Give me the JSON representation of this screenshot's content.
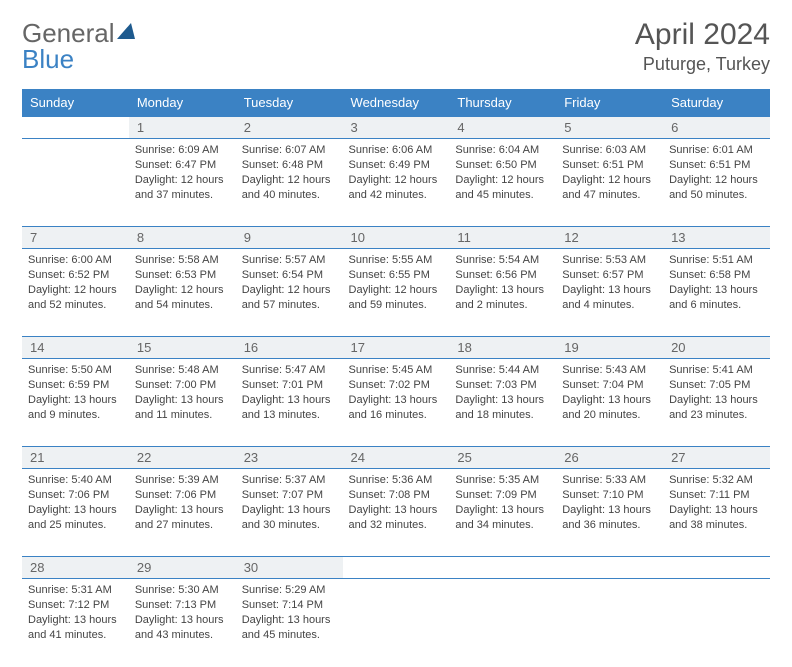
{
  "brand": {
    "word1": "General",
    "word2": "Blue"
  },
  "title": "April 2024",
  "location": "Puturge, Turkey",
  "dayHeaders": [
    "Sunday",
    "Monday",
    "Tuesday",
    "Wednesday",
    "Thursday",
    "Friday",
    "Saturday"
  ],
  "colors": {
    "headerBg": "#3b82c4",
    "dayNumBg": "#eef1f3",
    "border": "#3b82c4",
    "text": "#444444",
    "titleText": "#555555"
  },
  "typography": {
    "monthTitleSize": 30,
    "locationSize": 18,
    "dayHeaderSize": 13,
    "cellTextSize": 11
  },
  "weeks": [
    {
      "nums": [
        "",
        "1",
        "2",
        "3",
        "4",
        "5",
        "6"
      ],
      "cells": [
        null,
        {
          "sr": "Sunrise: 6:09 AM",
          "ss": "Sunset: 6:47 PM",
          "d1": "Daylight: 12 hours",
          "d2": "and 37 minutes."
        },
        {
          "sr": "Sunrise: 6:07 AM",
          "ss": "Sunset: 6:48 PM",
          "d1": "Daylight: 12 hours",
          "d2": "and 40 minutes."
        },
        {
          "sr": "Sunrise: 6:06 AM",
          "ss": "Sunset: 6:49 PM",
          "d1": "Daylight: 12 hours",
          "d2": "and 42 minutes."
        },
        {
          "sr": "Sunrise: 6:04 AM",
          "ss": "Sunset: 6:50 PM",
          "d1": "Daylight: 12 hours",
          "d2": "and 45 minutes."
        },
        {
          "sr": "Sunrise: 6:03 AM",
          "ss": "Sunset: 6:51 PM",
          "d1": "Daylight: 12 hours",
          "d2": "and 47 minutes."
        },
        {
          "sr": "Sunrise: 6:01 AM",
          "ss": "Sunset: 6:51 PM",
          "d1": "Daylight: 12 hours",
          "d2": "and 50 minutes."
        }
      ]
    },
    {
      "nums": [
        "7",
        "8",
        "9",
        "10",
        "11",
        "12",
        "13"
      ],
      "cells": [
        {
          "sr": "Sunrise: 6:00 AM",
          "ss": "Sunset: 6:52 PM",
          "d1": "Daylight: 12 hours",
          "d2": "and 52 minutes."
        },
        {
          "sr": "Sunrise: 5:58 AM",
          "ss": "Sunset: 6:53 PM",
          "d1": "Daylight: 12 hours",
          "d2": "and 54 minutes."
        },
        {
          "sr": "Sunrise: 5:57 AM",
          "ss": "Sunset: 6:54 PM",
          "d1": "Daylight: 12 hours",
          "d2": "and 57 minutes."
        },
        {
          "sr": "Sunrise: 5:55 AM",
          "ss": "Sunset: 6:55 PM",
          "d1": "Daylight: 12 hours",
          "d2": "and 59 minutes."
        },
        {
          "sr": "Sunrise: 5:54 AM",
          "ss": "Sunset: 6:56 PM",
          "d1": "Daylight: 13 hours",
          "d2": "and 2 minutes."
        },
        {
          "sr": "Sunrise: 5:53 AM",
          "ss": "Sunset: 6:57 PM",
          "d1": "Daylight: 13 hours",
          "d2": "and 4 minutes."
        },
        {
          "sr": "Sunrise: 5:51 AM",
          "ss": "Sunset: 6:58 PM",
          "d1": "Daylight: 13 hours",
          "d2": "and 6 minutes."
        }
      ]
    },
    {
      "nums": [
        "14",
        "15",
        "16",
        "17",
        "18",
        "19",
        "20"
      ],
      "cells": [
        {
          "sr": "Sunrise: 5:50 AM",
          "ss": "Sunset: 6:59 PM",
          "d1": "Daylight: 13 hours",
          "d2": "and 9 minutes."
        },
        {
          "sr": "Sunrise: 5:48 AM",
          "ss": "Sunset: 7:00 PM",
          "d1": "Daylight: 13 hours",
          "d2": "and 11 minutes."
        },
        {
          "sr": "Sunrise: 5:47 AM",
          "ss": "Sunset: 7:01 PM",
          "d1": "Daylight: 13 hours",
          "d2": "and 13 minutes."
        },
        {
          "sr": "Sunrise: 5:45 AM",
          "ss": "Sunset: 7:02 PM",
          "d1": "Daylight: 13 hours",
          "d2": "and 16 minutes."
        },
        {
          "sr": "Sunrise: 5:44 AM",
          "ss": "Sunset: 7:03 PM",
          "d1": "Daylight: 13 hours",
          "d2": "and 18 minutes."
        },
        {
          "sr": "Sunrise: 5:43 AM",
          "ss": "Sunset: 7:04 PM",
          "d1": "Daylight: 13 hours",
          "d2": "and 20 minutes."
        },
        {
          "sr": "Sunrise: 5:41 AM",
          "ss": "Sunset: 7:05 PM",
          "d1": "Daylight: 13 hours",
          "d2": "and 23 minutes."
        }
      ]
    },
    {
      "nums": [
        "21",
        "22",
        "23",
        "24",
        "25",
        "26",
        "27"
      ],
      "cells": [
        {
          "sr": "Sunrise: 5:40 AM",
          "ss": "Sunset: 7:06 PM",
          "d1": "Daylight: 13 hours",
          "d2": "and 25 minutes."
        },
        {
          "sr": "Sunrise: 5:39 AM",
          "ss": "Sunset: 7:06 PM",
          "d1": "Daylight: 13 hours",
          "d2": "and 27 minutes."
        },
        {
          "sr": "Sunrise: 5:37 AM",
          "ss": "Sunset: 7:07 PM",
          "d1": "Daylight: 13 hours",
          "d2": "and 30 minutes."
        },
        {
          "sr": "Sunrise: 5:36 AM",
          "ss": "Sunset: 7:08 PM",
          "d1": "Daylight: 13 hours",
          "d2": "and 32 minutes."
        },
        {
          "sr": "Sunrise: 5:35 AM",
          "ss": "Sunset: 7:09 PM",
          "d1": "Daylight: 13 hours",
          "d2": "and 34 minutes."
        },
        {
          "sr": "Sunrise: 5:33 AM",
          "ss": "Sunset: 7:10 PM",
          "d1": "Daylight: 13 hours",
          "d2": "and 36 minutes."
        },
        {
          "sr": "Sunrise: 5:32 AM",
          "ss": "Sunset: 7:11 PM",
          "d1": "Daylight: 13 hours",
          "d2": "and 38 minutes."
        }
      ]
    },
    {
      "nums": [
        "28",
        "29",
        "30",
        "",
        "",
        "",
        ""
      ],
      "cells": [
        {
          "sr": "Sunrise: 5:31 AM",
          "ss": "Sunset: 7:12 PM",
          "d1": "Daylight: 13 hours",
          "d2": "and 41 minutes."
        },
        {
          "sr": "Sunrise: 5:30 AM",
          "ss": "Sunset: 7:13 PM",
          "d1": "Daylight: 13 hours",
          "d2": "and 43 minutes."
        },
        {
          "sr": "Sunrise: 5:29 AM",
          "ss": "Sunset: 7:14 PM",
          "d1": "Daylight: 13 hours",
          "d2": "and 45 minutes."
        },
        null,
        null,
        null,
        null
      ]
    }
  ]
}
